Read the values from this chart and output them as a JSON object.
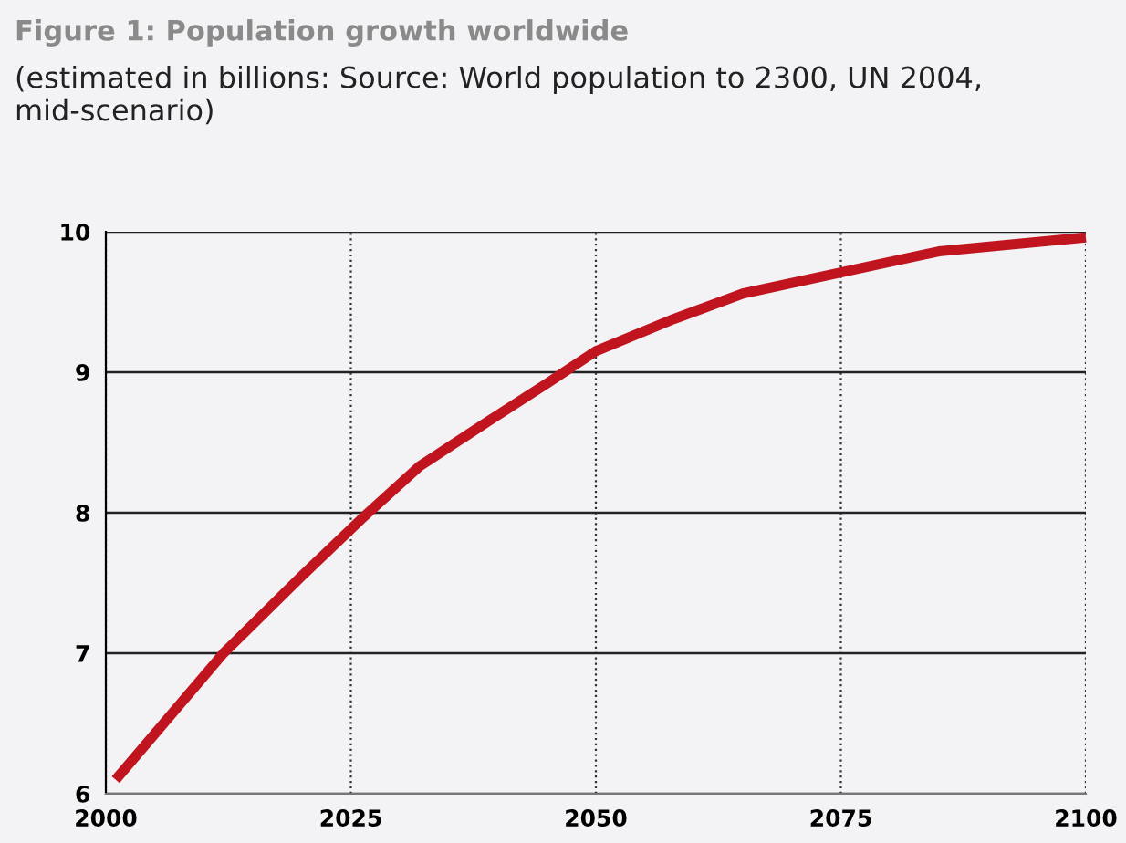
{
  "chart_data": {
    "type": "line",
    "title": "Figure 1: Population growth worldwide",
    "subtitle": "(estimated in billions: Source: World population to 2300, UN 2004, mid-scenario)",
    "x": [
      2001,
      2012,
      2020,
      2026,
      2032,
      2039,
      2045,
      2050,
      2058,
      2065,
      2075,
      2085,
      2100
    ],
    "series": [
      {
        "color": "#c0141f",
        "values": [
          6.1,
          7.0,
          7.55,
          7.95,
          8.33,
          8.65,
          8.92,
          9.15,
          9.38,
          9.56,
          9.71,
          9.86,
          9.96
        ]
      }
    ],
    "xlim": [
      2000,
      2100
    ],
    "xticks": [
      2000,
      2025,
      2050,
      2075,
      2100
    ],
    "ylim": [
      6,
      10
    ],
    "yticks": [
      6,
      7,
      8,
      9,
      10
    ],
    "grid": true,
    "legend": false,
    "marker": "none",
    "line_style": "solid"
  }
}
